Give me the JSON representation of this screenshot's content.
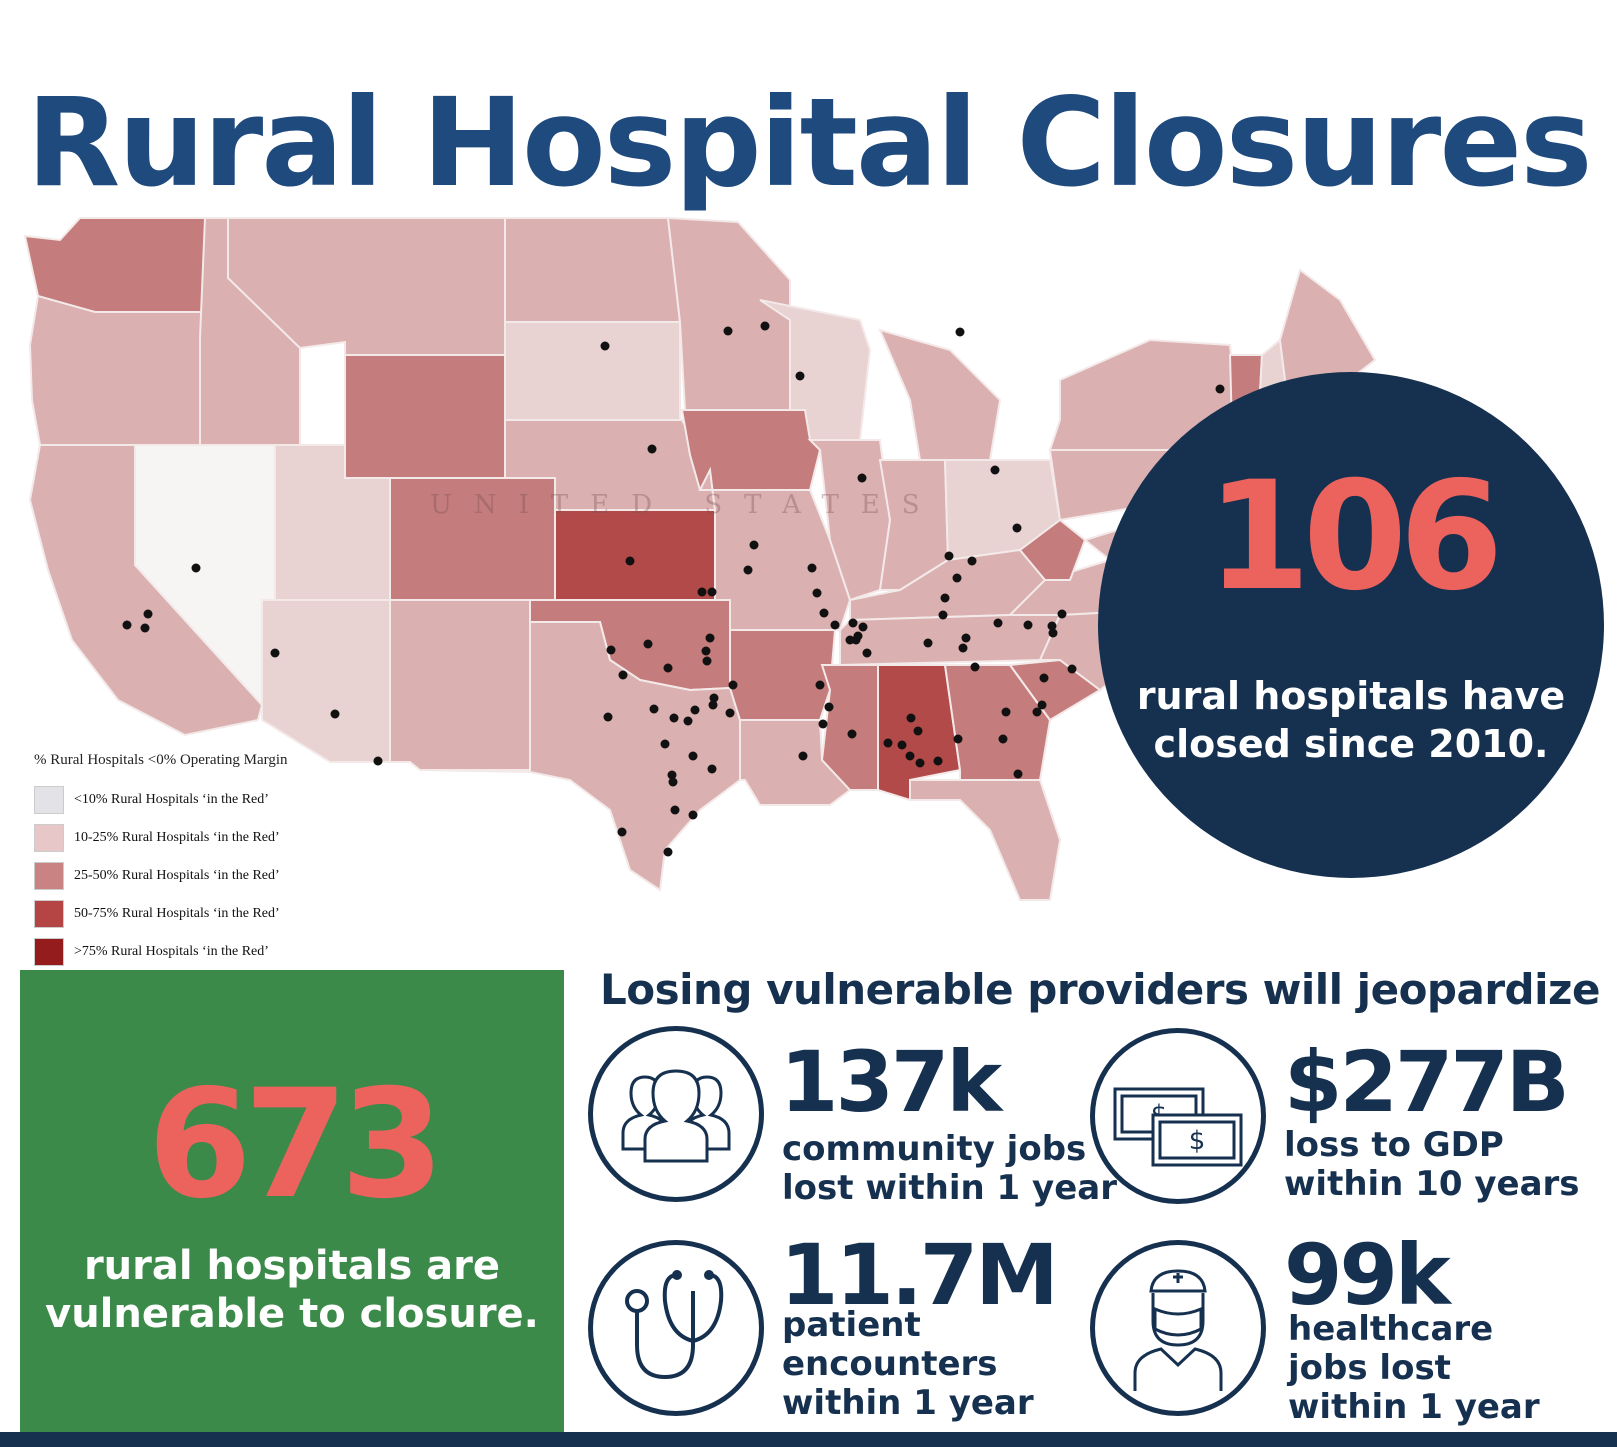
{
  "title": "Rural Hospital Closures",
  "map": {
    "watermark": "UNITED STATES",
    "legend_title": "% Rural Hospitals <0% Operating Margin",
    "legend": [
      {
        "label": "<10% Rural Hospitals ‘in the Red’",
        "color": "#e3e3e7"
      },
      {
        "label": "10-25% Rural Hospitals ‘in the Red’",
        "color": "#e7c7c7"
      },
      {
        "label": "25-50% Rural Hospitals ‘in the Red’",
        "color": "#c98383"
      },
      {
        "label": "50-75% Rural Hospitals ‘in the Red’",
        "color": "#b54545"
      },
      {
        "label": ">75% Rural Hospitals ‘in the Red’",
        "color": "#941c1c"
      }
    ],
    "colors": {
      "white": "#f7f4f4",
      "light": "#e9d2d2",
      "mid": "#dab0b0",
      "dark": "#c47c7c",
      "darker": "#b34a4a",
      "border": "#f6eded",
      "dot": "#111111"
    }
  },
  "closed": {
    "number": "106",
    "text": "rural hospitals have\nclosed since 2010."
  },
  "vulnerable": {
    "number": "673",
    "text": "rural hospitals are\nvulnerable to closure."
  },
  "headline": "Losing vulnerable providers will jeopardize",
  "stats": [
    {
      "number": "137k",
      "text": "community jobs\nlost within 1 year",
      "icon": "people-icon"
    },
    {
      "number": "$277B",
      "text": "loss to GDP\nwithin 10 years",
      "icon": "money-icon"
    },
    {
      "number": "11.7M",
      "text": "patient\nencounters\nwithin 1 year",
      "icon": "stethoscope-icon"
    },
    {
      "number": "99k",
      "text": "healthcare\njobs lost\nwithin 1 year",
      "icon": "doctor-icon"
    }
  ],
  "theme": {
    "navy": "#16304f",
    "title_blue": "#1f4a7e",
    "coral": "#ec625d",
    "green": "#3c8a4a"
  }
}
